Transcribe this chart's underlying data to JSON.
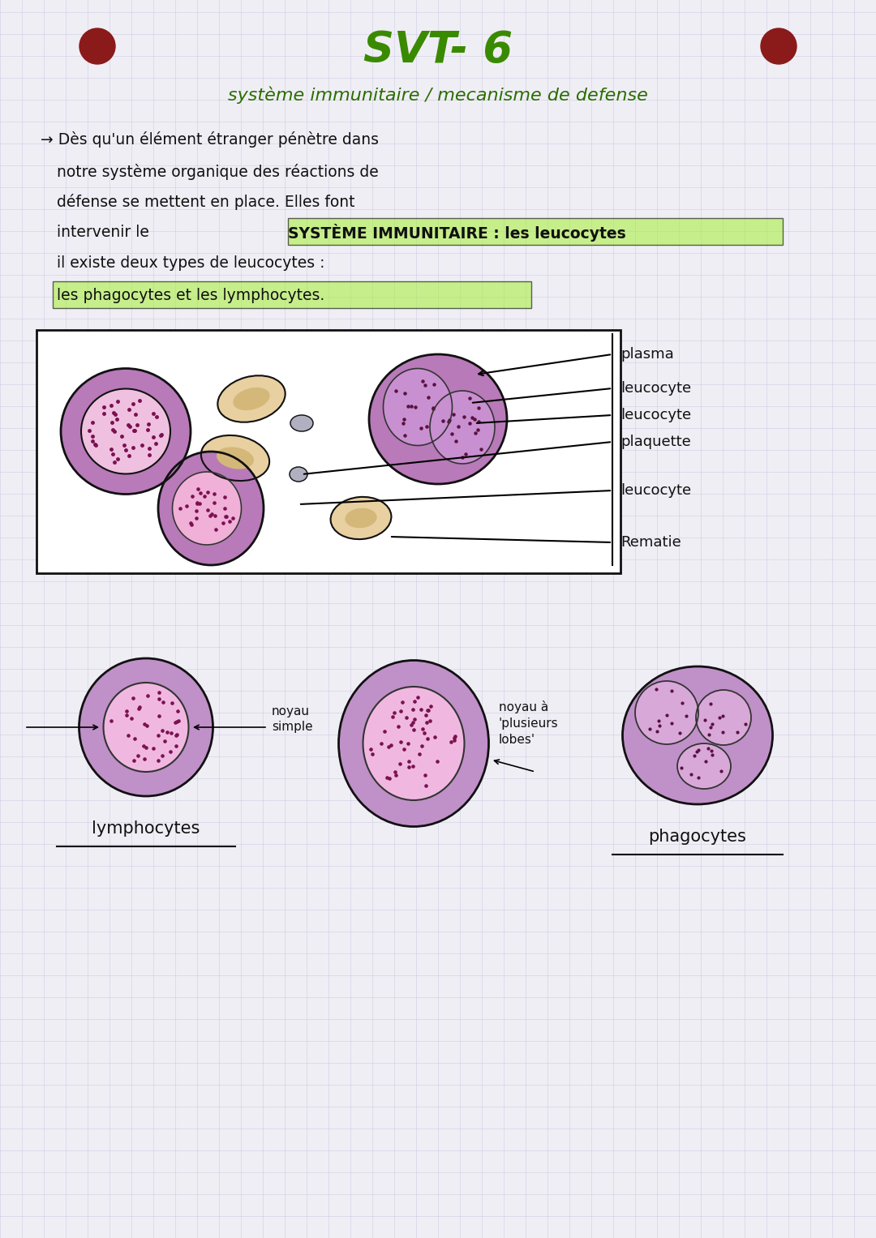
{
  "bg_color": "#f0eef5",
  "grid_color": "#c8c8e0",
  "title": "SVT- 6",
  "subtitle": "système immunitaire / mecanisme de defense",
  "label_lymph": "lymphocytes",
  "label_phago": "phagocytes",
  "noyau_simple": "noyau\nsimple",
  "noyau_lobes": "noyau à\n'plusieurs\nlobes'"
}
